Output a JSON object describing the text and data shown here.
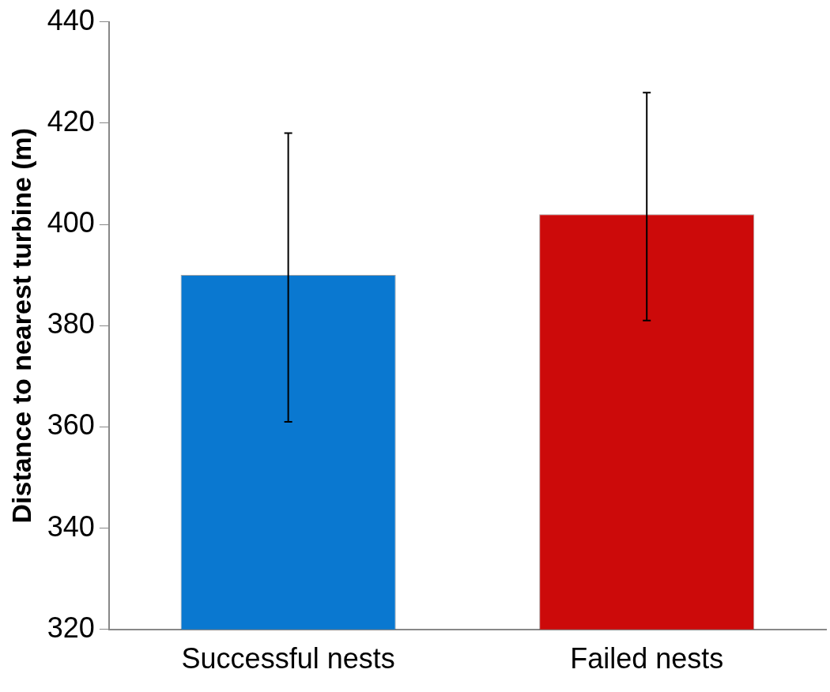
{
  "chart_data": {
    "type": "bar",
    "ylabel": "Distance to nearest turbine (m)",
    "categories": [
      "Successful nests",
      "Failed nests"
    ],
    "values": [
      390,
      402
    ],
    "colors": [
      "#0a78d0",
      "#cc0a0a"
    ],
    "errors": [
      [
        361,
        418
      ],
      [
        381,
        426
      ]
    ],
    "ylim": [
      320,
      440
    ],
    "yticks": [
      320,
      340,
      360,
      380,
      400,
      420,
      440
    ],
    "grid": false,
    "legend": false
  }
}
